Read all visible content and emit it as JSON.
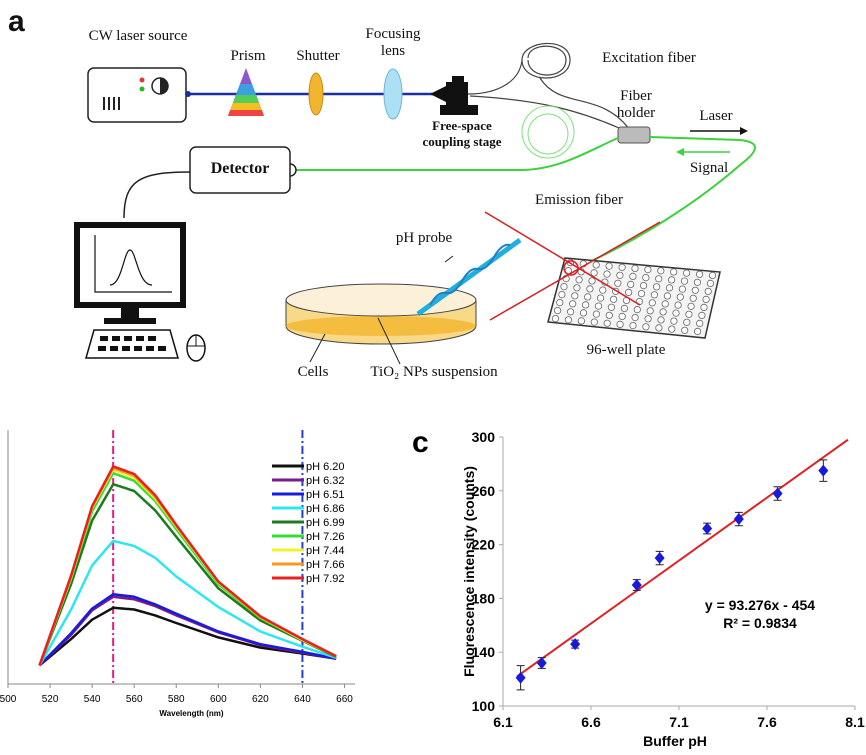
{
  "panel_a": {
    "label": "a",
    "laser_source": "CW laser source",
    "prism": "Prism",
    "shutter": "Shutter",
    "focusing_lens": "Focusing lens",
    "excitation_fiber": "Excitation fiber",
    "fiber_holder": "Fiber holder",
    "laser": "Laser",
    "coupling_stage": "Free-space coupling stage",
    "detector": "Detector",
    "signal": "Signal",
    "emission_fiber": "Emission fiber",
    "ph_probe": "pH probe",
    "cells": "Cells",
    "suspension": "TiO₂ NPs suspension",
    "well_plate": "96-well plate"
  },
  "chart_data": [
    {
      "type": "line",
      "x_label": "Wavelength (nm)",
      "x": [
        515,
        530,
        540,
        550,
        560,
        570,
        580,
        600,
        620,
        640,
        656
      ],
      "xlim": [
        500,
        665
      ],
      "xticks": [
        500,
        520,
        540,
        560,
        580,
        600,
        620,
        640,
        660
      ],
      "ylim": [
        0,
        300
      ],
      "vlines": [
        550,
        640
      ],
      "vline_colors": [
        "#e8198b",
        "#1f3fd6"
      ],
      "series": [
        {
          "name": "pH 6.20",
          "color": "#111111",
          "values": [
            22,
            53,
            76,
            90,
            88,
            81,
            72,
            55,
            43,
            36,
            30
          ]
        },
        {
          "name": "pH 6.32",
          "color": "#7a1a8c",
          "values": [
            22,
            58,
            87,
            103,
            100,
            92,
            81,
            61,
            46,
            37,
            30
          ]
        },
        {
          "name": "pH 6.51",
          "color": "#1a1adb",
          "values": [
            22,
            60,
            89,
            106,
            103,
            94,
            83,
            62,
            47,
            38,
            30
          ]
        },
        {
          "name": "pH 6.86",
          "color": "#2ee6f0",
          "values": [
            22,
            88,
            140,
            169,
            163,
            149,
            127,
            91,
            62,
            44,
            31
          ]
        },
        {
          "name": "pH 6.99",
          "color": "#1e7a1e",
          "values": [
            22,
            118,
            193,
            236,
            228,
            205,
            174,
            113,
            75,
            51,
            32
          ]
        },
        {
          "name": "pH 7.26",
          "color": "#33dd33",
          "values": [
            22,
            124,
            204,
            249,
            240,
            216,
            183,
            118,
            78,
            52,
            33
          ]
        },
        {
          "name": "pH 7.44",
          "color": "#f2f22a",
          "values": [
            22,
            126,
            208,
            253,
            244,
            219,
            186,
            120,
            79,
            52,
            33
          ]
        },
        {
          "name": "pH 7.66",
          "color": "#f59a1e",
          "values": [
            22,
            127,
            209,
            255,
            246,
            221,
            187,
            121,
            79,
            53,
            33
          ]
        },
        {
          "name": "pH 7.92",
          "color": "#e82020",
          "values": [
            22,
            128,
            210,
            257,
            248,
            223,
            188,
            121,
            80,
            53,
            33
          ]
        }
      ]
    },
    {
      "type": "scatter",
      "panel_label": "c",
      "x_label": "Buffer pH",
      "y_label": "Fluorescence intensity (counts)",
      "x": [
        6.2,
        6.32,
        6.51,
        6.86,
        6.99,
        7.26,
        7.44,
        7.66,
        7.92
      ],
      "values": [
        121,
        132,
        146,
        190,
        210,
        232,
        239,
        258,
        275
      ],
      "errors": [
        9,
        4,
        3,
        4,
        5,
        4,
        5,
        5,
        8
      ],
      "color": "#1a1adb",
      "fit_line": {
        "x": [
          6.18,
          8.06
        ],
        "y": [
          122,
          298
        ],
        "color": "#e02020"
      },
      "equation": "y = 93.276x - 454",
      "r_squared": "R² = 0.9834",
      "xlim": [
        6.1,
        8.1
      ],
      "xticks": [
        6.1,
        6.6,
        7.1,
        7.6,
        8.1
      ],
      "ylim": [
        100,
        300
      ],
      "yticks": [
        100,
        140,
        180,
        220,
        260,
        300
      ]
    }
  ]
}
